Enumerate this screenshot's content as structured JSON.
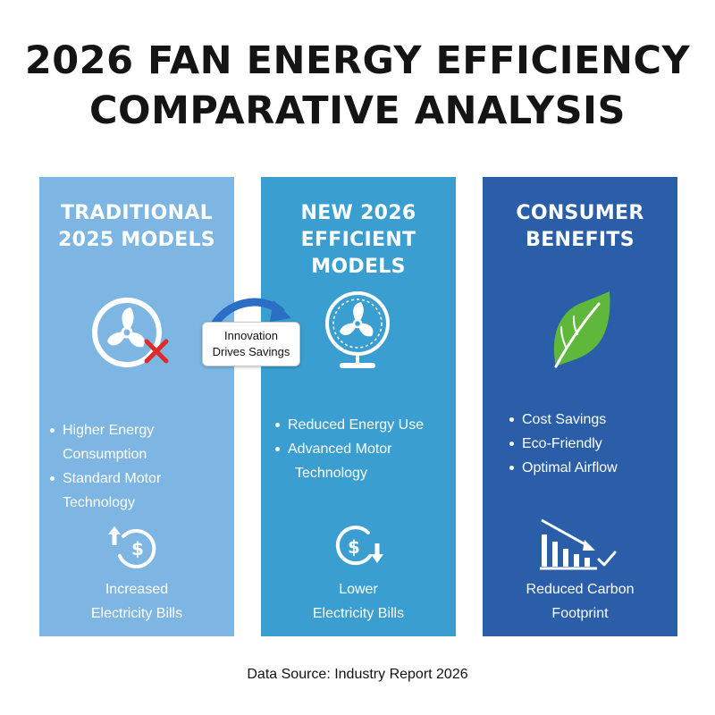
{
  "title": {
    "line1": "2026 FAN ENERGY EFFICIENCY",
    "line2": "COMPARATIVE ANALYSIS"
  },
  "connector": {
    "line1": "Innovation",
    "line2": "Drives Savings",
    "icon": "curved-arrow-icon"
  },
  "panels": [
    {
      "heading_line1": "TRADITIONAL",
      "heading_line2": "2025 MODELS",
      "color": "#7db6e3",
      "hero_icon": "fan-with-red-x-icon",
      "bullets": [
        "Higher Energy Consumption",
        "Standard Motor Technology"
      ],
      "footer_icon": "dollar-arrow-up-icon",
      "footer_line1": "Increased",
      "footer_line2": "Electricity Bills"
    },
    {
      "heading_line1": "NEW 2026",
      "heading_line2": "EFFICIENT MODELS",
      "color": "#3a9fd0",
      "hero_icon": "desk-fan-icon",
      "bullets": [
        "Reduced Energy Use",
        "Advanced Motor",
        "Technology"
      ],
      "footer_icon": "dollar-arrow-down-icon",
      "footer_line1": "Lower",
      "footer_line2": "Electricity Bills"
    },
    {
      "heading_line1": "CONSUMER",
      "heading_line2": "BENEFITS",
      "color": "#2a5ea8",
      "hero_icon": "green-leaf-icon",
      "bullets": [
        "Cost Savings",
        "Eco-Friendly",
        "Optimal Airflow"
      ],
      "footer_icon": "declining-bars-check-icon",
      "footer_line1": "Reduced Carbon",
      "footer_line2": "Footprint"
    }
  ],
  "source": "Data Source: Industry Report 2026",
  "colors": {
    "red_x": "#e02a2a",
    "leaf_green": "#5fb83c",
    "connector_arrow": "#2a6fc4"
  }
}
